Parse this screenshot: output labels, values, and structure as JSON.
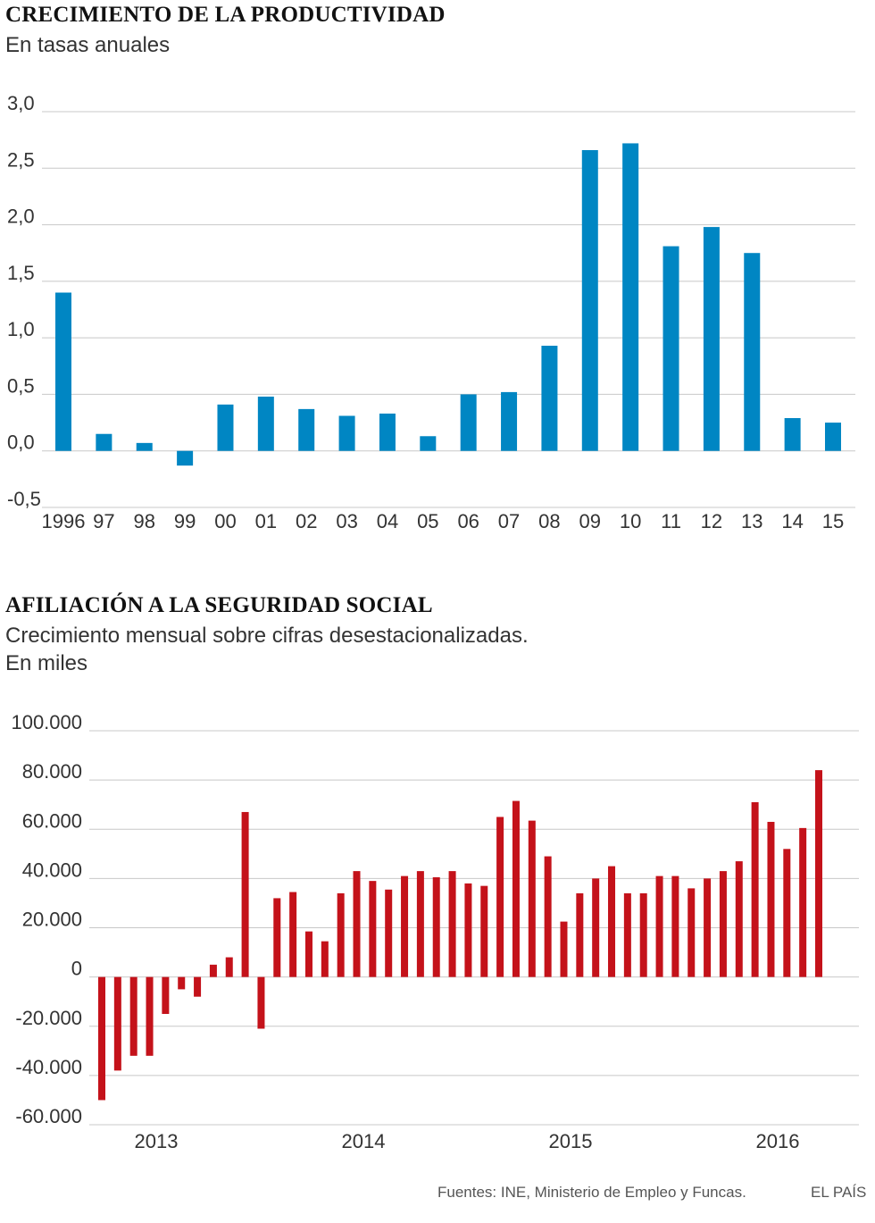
{
  "chart_data": [
    {
      "type": "bar",
      "title": "CRECIMIENTO DE LA PRODUCTIVIDAD",
      "subtitle": "En tasas anuales",
      "categories": [
        "1996",
        "97",
        "98",
        "99",
        "00",
        "01",
        "02",
        "03",
        "04",
        "05",
        "06",
        "07",
        "08",
        "09",
        "10",
        "11",
        "12",
        "13",
        "14",
        "15"
      ],
      "values": [
        1.4,
        0.15,
        0.07,
        -0.13,
        0.41,
        0.48,
        0.37,
        0.31,
        0.33,
        0.13,
        0.5,
        0.52,
        0.93,
        2.66,
        2.72,
        1.81,
        1.98,
        1.75,
        0.29,
        0.25
      ],
      "yticks": [
        "3,0",
        "2,5",
        "2,0",
        "1,5",
        "1,0",
        "0,5",
        "0,0",
        "-0,5"
      ],
      "ylim": [
        -0.5,
        3.0
      ],
      "color": "#0086C3",
      "grid": true
    },
    {
      "type": "bar",
      "title": "AFILIACIÓN A LA SEGURIDAD SOCIAL",
      "subtitle_lines": [
        "Crecimiento mensual sobre cifras desestacionalizadas.",
        "En miles"
      ],
      "x_labels": [
        "2013",
        "2014",
        "2015",
        "2016"
      ],
      "values": [
        -50000,
        -38000,
        -32000,
        -32000,
        -15000,
        -5000,
        -8000,
        5000,
        8000,
        67000,
        -21000,
        32000,
        34500,
        18500,
        14500,
        34000,
        43000,
        39000,
        35500,
        41000,
        43000,
        40500,
        43000,
        38000,
        37000,
        65000,
        71500,
        63500,
        49000,
        22500,
        34000,
        40000,
        45000,
        34000,
        34000,
        41000,
        41000,
        36000,
        40000,
        43000,
        47000,
        71000,
        63000,
        52000,
        60500,
        84000
      ],
      "yticks": [
        "100.000",
        "80.000",
        "60.000",
        "40.000",
        "20.000",
        "0",
        "-20.000",
        "-40.000",
        "-60.000"
      ],
      "ylim": [
        -60000,
        100000
      ],
      "color": "#C4121A",
      "grid": true
    }
  ],
  "footer": {
    "source": "Fuentes: INE, Ministerio de Empleo y Funcas.",
    "brand": "EL PAÍS"
  }
}
